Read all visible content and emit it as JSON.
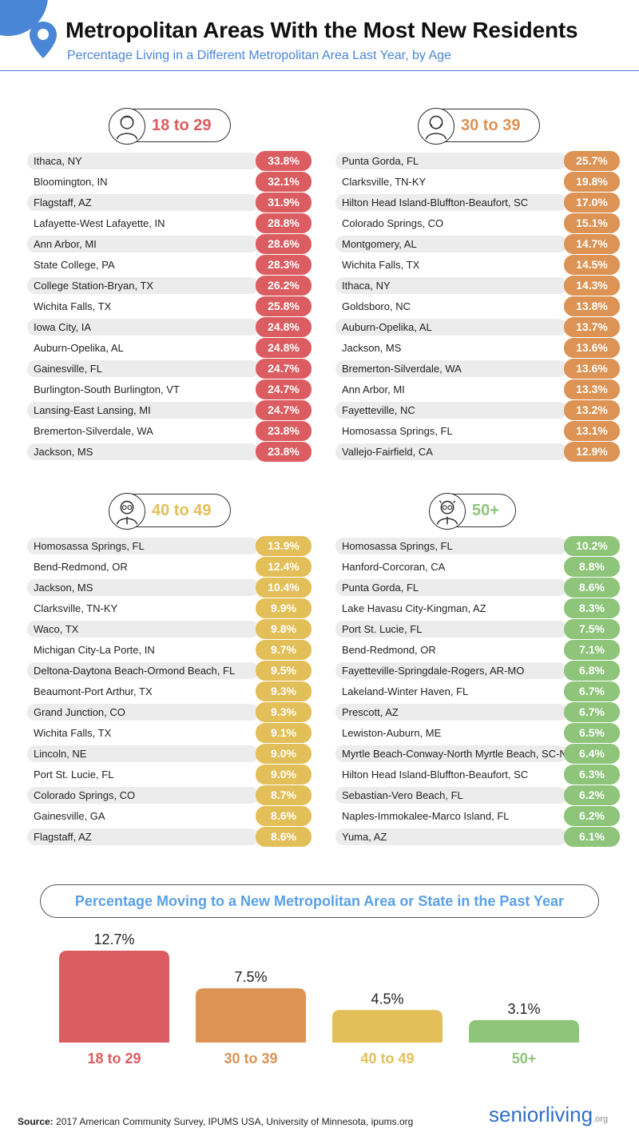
{
  "header": {
    "title": "Metropolitan Areas With the Most New Residents",
    "subtitle": "Percentage Living in a Different Metropolitan Area Last Year, by Age"
  },
  "colors": {
    "accent_blue": "#4a86d6",
    "age_18_29": "#dc5d61",
    "age_30_39": "#dc9354",
    "age_40_49": "#e3bf59",
    "age_50_plus": "#8ec57a"
  },
  "panels": [
    {
      "label": "18 to 29",
      "color": "#dc5d61",
      "rows": [
        {
          "name": "Ithaca, NY",
          "value": "33.8%"
        },
        {
          "name": "Bloomington, IN",
          "value": "32.1%"
        },
        {
          "name": "Flagstaff, AZ",
          "value": "31.9%"
        },
        {
          "name": "Lafayette-West Lafayette, IN",
          "value": "28.8%"
        },
        {
          "name": "Ann Arbor, MI",
          "value": "28.6%"
        },
        {
          "name": "State College, PA",
          "value": "28.3%"
        },
        {
          "name": "College Station-Bryan, TX",
          "value": "26.2%"
        },
        {
          "name": "Wichita Falls, TX",
          "value": "25.8%"
        },
        {
          "name": "Iowa City, IA",
          "value": "24.8%"
        },
        {
          "name": "Auburn-Opelika, AL",
          "value": "24.8%"
        },
        {
          "name": "Gainesville, FL",
          "value": "24.7%"
        },
        {
          "name": "Burlington-South Burlington, VT",
          "value": "24.7%"
        },
        {
          "name": "Lansing-East Lansing, MI",
          "value": "24.7%"
        },
        {
          "name": "Bremerton-Silverdale, WA",
          "value": "23.8%"
        },
        {
          "name": "Jackson, MS",
          "value": "23.8%"
        }
      ]
    },
    {
      "label": "30 to 39",
      "color": "#dc9354",
      "rows": [
        {
          "name": "Punta Gorda, FL",
          "value": "25.7%"
        },
        {
          "name": "Clarksville, TN-KY",
          "value": "19.8%"
        },
        {
          "name": "Hilton Head Island-Bluffton-Beaufort, SC",
          "value": "17.0%"
        },
        {
          "name": "Colorado Springs, CO",
          "value": "15.1%"
        },
        {
          "name": "Montgomery, AL",
          "value": "14.7%"
        },
        {
          "name": "Wichita Falls, TX",
          "value": "14.5%"
        },
        {
          "name": "Ithaca, NY",
          "value": "14.3%"
        },
        {
          "name": "Goldsboro, NC",
          "value": "13.8%"
        },
        {
          "name": "Auburn-Opelika, AL",
          "value": "13.7%"
        },
        {
          "name": "Jackson, MS",
          "value": "13.6%"
        },
        {
          "name": "Bremerton-Silverdale, WA",
          "value": "13.6%"
        },
        {
          "name": "Ann Arbor, MI",
          "value": "13.3%"
        },
        {
          "name": "Fayetteville, NC",
          "value": "13.2%"
        },
        {
          "name": "Homosassa Springs, FL",
          "value": "13.1%"
        },
        {
          "name": "Vallejo-Fairfield, CA",
          "value": "12.9%"
        }
      ]
    },
    {
      "label": "40 to 49",
      "color": "#e3bf59",
      "rows": [
        {
          "name": "Homosassa Springs, FL",
          "value": "13.9%"
        },
        {
          "name": "Bend-Redmond, OR",
          "value": "12.4%"
        },
        {
          "name": "Jackson, MS",
          "value": "10.4%"
        },
        {
          "name": "Clarksville, TN-KY",
          "value": "9.9%"
        },
        {
          "name": "Waco, TX",
          "value": "9.8%"
        },
        {
          "name": "Michigan City-La Porte, IN",
          "value": "9.7%"
        },
        {
          "name": "Deltona-Daytona Beach-Ormond Beach, FL",
          "value": "9.5%"
        },
        {
          "name": "Beaumont-Port Arthur, TX",
          "value": "9.3%"
        },
        {
          "name": "Grand Junction, CO",
          "value": "9.3%"
        },
        {
          "name": "Wichita Falls, TX",
          "value": "9.1%"
        },
        {
          "name": "Lincoln, NE",
          "value": "9.0%"
        },
        {
          "name": "Port St. Lucie, FL",
          "value": "9.0%"
        },
        {
          "name": "Colorado Springs, CO",
          "value": "8.7%"
        },
        {
          "name": "Gainesville, GA",
          "value": "8.6%"
        },
        {
          "name": "Flagstaff, AZ",
          "value": "8.6%"
        }
      ]
    },
    {
      "label": "50+",
      "color": "#8ec57a",
      "rows": [
        {
          "name": "Homosassa Springs, FL",
          "value": "10.2%"
        },
        {
          "name": "Hanford-Corcoran, CA",
          "value": "8.8%"
        },
        {
          "name": "Punta Gorda, FL",
          "value": "8.6%"
        },
        {
          "name": "Lake Havasu City-Kingman, AZ",
          "value": "8.3%"
        },
        {
          "name": "Port St. Lucie, FL",
          "value": "7.5%"
        },
        {
          "name": "Bend-Redmond, OR",
          "value": "7.1%"
        },
        {
          "name": "Fayetteville-Springdale-Rogers, AR-MO",
          "value": "6.8%"
        },
        {
          "name": "Lakeland-Winter Haven, FL",
          "value": "6.7%"
        },
        {
          "name": "Prescott, AZ",
          "value": "6.7%"
        },
        {
          "name": "Lewiston-Auburn, ME",
          "value": "6.5%"
        },
        {
          "name": "Myrtle Beach-Conway-North Myrtle Beach, SC-NC",
          "value": "6.4%"
        },
        {
          "name": "Hilton Head Island-Bluffton-Beaufort, SC",
          "value": "6.3%"
        },
        {
          "name": "Sebastian-Vero Beach, FL",
          "value": "6.2%"
        },
        {
          "name": "Naples-Immokalee-Marco Island, FL",
          "value": "6.2%"
        },
        {
          "name": "Yuma, AZ",
          "value": "6.1%"
        }
      ]
    }
  ],
  "chart_data": {
    "type": "bar",
    "title": "Percentage Moving to a New Metropolitan Area or State in the Past Year",
    "categories": [
      "18 to 29",
      "30 to 39",
      "40 to 49",
      "50+"
    ],
    "values": [
      12.7,
      7.5,
      4.5,
      3.1
    ],
    "value_labels": [
      "12.7%",
      "7.5%",
      "4.5%",
      "3.1%"
    ],
    "colors": [
      "#dc5d61",
      "#dc9354",
      "#e3bf59",
      "#8ec57a"
    ],
    "ylim": [
      0,
      12.7
    ],
    "xlabel": "",
    "ylabel": "",
    "grid": false
  },
  "footer": {
    "source_label": "Source:",
    "source_text": "2017 American Community Survey, IPUMS USA, University of Minnesota, ipums.org",
    "logo_text": "seniorliving",
    "logo_suffix": ".org"
  }
}
